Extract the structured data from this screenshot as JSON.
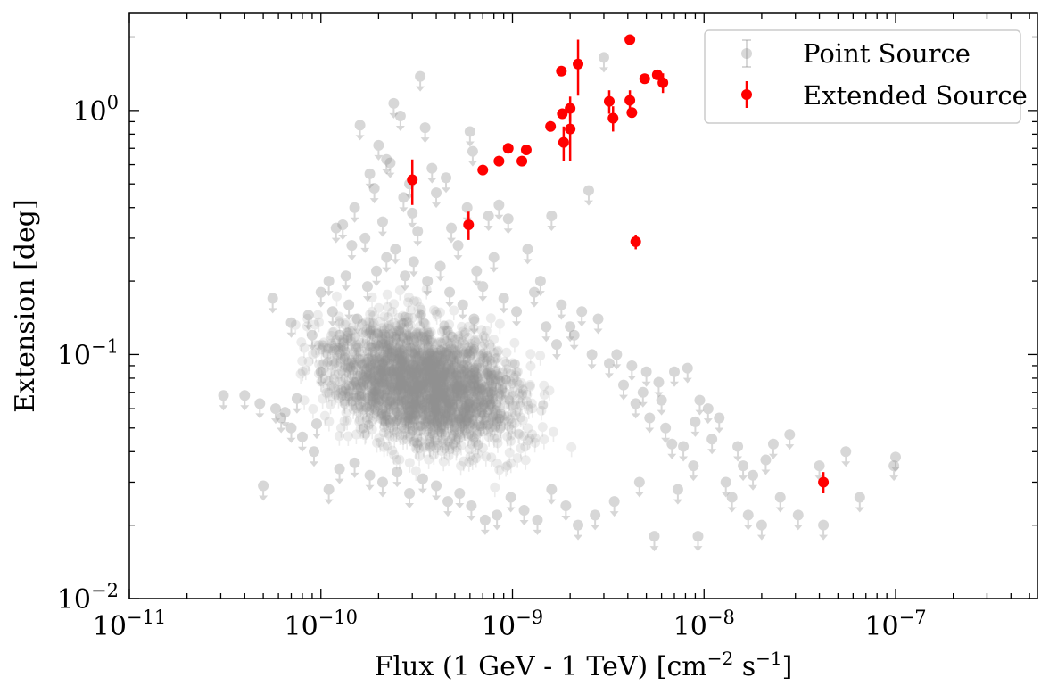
{
  "chart_data": {
    "type": "scatter",
    "xlabel": "Flux (1 GeV - 1 TeV) [cm",
    "xlabel_sup1": "−2",
    "xlabel_mid": " s",
    "xlabel_sup2": "−1",
    "xlabel_end": "]",
    "ylabel": "Extension [deg]",
    "x_scale": "log",
    "y_scale": "log",
    "xlim": [
      1e-11,
      5.5e-07
    ],
    "ylim": [
      0.01,
      2.5
    ],
    "x_ticks": [
      {
        "value": 1e-11,
        "base": "10",
        "exp": "−11"
      },
      {
        "value": 1e-10,
        "base": "10",
        "exp": "−10"
      },
      {
        "value": 1e-09,
        "base": "10",
        "exp": "−9"
      },
      {
        "value": 1e-08,
        "base": "10",
        "exp": "−8"
      },
      {
        "value": 1e-07,
        "base": "10",
        "exp": "−7"
      }
    ],
    "y_ticks": [
      {
        "value": 0.01,
        "base": "10",
        "exp": "−2"
      },
      {
        "value": 0.1,
        "base": "10",
        "exp": "−1"
      },
      {
        "value": 1,
        "base": "10",
        "exp": "0"
      }
    ],
    "legend": {
      "placement": "top-right",
      "entries": [
        "Point Source",
        "Extended Source"
      ]
    },
    "colors": {
      "point_source": "#909090",
      "extended_source": "#ff0000"
    },
    "series": [
      {
        "name": "Point Source",
        "kind": "upper-limit",
        "marker_color": "#909090",
        "opacity": 0.35,
        "points": [
          [
            3.1e-11,
            0.068
          ],
          [
            4e-11,
            0.068
          ],
          [
            4.8e-11,
            0.063
          ],
          [
            5e-11,
            0.029
          ],
          [
            5.6e-11,
            0.17
          ],
          [
            6.2e-11,
            0.055
          ],
          [
            7e-11,
            0.135
          ],
          [
            7.5e-11,
            0.066
          ],
          [
            8.6e-11,
            0.145
          ],
          [
            9e-11,
            0.12
          ],
          [
            9.5e-11,
            0.052
          ],
          [
            1e-10,
            0.085
          ],
          [
            1.1e-10,
            0.2
          ],
          [
            1.2e-10,
            0.33
          ],
          [
            1.35e-10,
            0.21
          ],
          [
            1.5e-10,
            0.4
          ],
          [
            1.6e-10,
            0.87
          ],
          [
            1.8e-10,
            0.55
          ],
          [
            2e-10,
            0.72
          ],
          [
            2.2e-10,
            0.63
          ],
          [
            2.4e-10,
            1.07
          ],
          [
            2.6e-10,
            0.95
          ],
          [
            2.9e-10,
            0.5
          ],
          [
            3.3e-10,
            1.38
          ],
          [
            3.5e-10,
            0.85
          ],
          [
            3.8e-10,
            0.58
          ],
          [
            4.5e-10,
            0.53
          ],
          [
            5.8e-10,
            0.4
          ],
          [
            6e-10,
            0.82
          ],
          [
            6.2e-10,
            0.68
          ],
          [
            7.5e-10,
            0.37
          ],
          [
            8.5e-10,
            0.41
          ],
          [
            9.5e-10,
            0.36
          ],
          [
            1.2e-09,
            0.27
          ],
          [
            1.4e-09,
            0.2
          ],
          [
            1.6e-09,
            0.37
          ],
          [
            2.5e-09,
            0.47
          ],
          [
            3e-09,
            1.65
          ],
          [
            1.8e-09,
            0.16
          ],
          [
            2e-09,
            0.13
          ],
          [
            2.3e-09,
            0.15
          ],
          [
            2.8e-09,
            0.14
          ],
          [
            3.5e-09,
            0.1
          ],
          [
            4.2e-09,
            0.09
          ],
          [
            5e-09,
            0.085
          ],
          [
            6e-09,
            0.065
          ],
          [
            7e-09,
            0.085
          ],
          [
            8.2e-09,
            0.088
          ],
          [
            9e-09,
            0.053
          ],
          [
            9.5e-09,
            0.065
          ],
          [
            1.1e-08,
            0.045
          ],
          [
            1.2e-08,
            0.055
          ],
          [
            1.3e-08,
            0.03
          ],
          [
            1.5e-08,
            0.042
          ],
          [
            1.6e-08,
            0.035
          ],
          [
            1.8e-08,
            0.032
          ],
          [
            2e-08,
            0.02
          ],
          [
            2.3e-08,
            0.043
          ],
          [
            2.5e-08,
            0.026
          ],
          [
            2.8e-08,
            0.047
          ],
          [
            3.1e-08,
            0.022
          ],
          [
            4e-08,
            0.035
          ],
          [
            4.2e-08,
            0.02
          ],
          [
            5.5e-08,
            0.04
          ],
          [
            6.5e-08,
            0.026
          ],
          [
            9.8e-08,
            0.035
          ],
          [
            1e-07,
            0.038
          ],
          [
            4.4e-09,
            0.063
          ],
          [
            5.5e-09,
            0.018
          ],
          [
            7.3e-09,
            0.028
          ],
          [
            1.05e-08,
            0.06
          ],
          [
            1.4e-08,
            0.026
          ],
          [
            1.7e-08,
            0.022
          ],
          [
            2.1e-08,
            0.037
          ],
          [
            9.3e-09,
            0.018
          ],
          [
            6.8e-09,
            0.043
          ],
          [
            5.8e-09,
            0.077
          ],
          [
            1.3e-10,
            0.34
          ],
          [
            1.45e-10,
            0.28
          ],
          [
            1.7e-10,
            0.3
          ],
          [
            1.9e-10,
            0.48
          ],
          [
            2.1e-10,
            0.35
          ],
          [
            2.3e-10,
            0.61
          ],
          [
            2.7e-10,
            0.44
          ],
          [
            3e-10,
            0.38
          ],
          [
            3.2e-10,
            0.32
          ],
          [
            4e-10,
            0.46
          ],
          [
            4.8e-10,
            0.33
          ],
          [
            5.2e-10,
            0.28
          ],
          [
            6.5e-10,
            0.22
          ],
          [
            7e-10,
            0.19
          ],
          [
            8e-10,
            0.25
          ],
          [
            9e-10,
            0.17
          ],
          [
            1.05e-09,
            0.15
          ],
          [
            1.3e-09,
            0.18
          ],
          [
            1.5e-09,
            0.13
          ],
          [
            1.7e-09,
            0.11
          ],
          [
            2.1e-09,
            0.12
          ],
          [
            2.6e-09,
            0.1
          ],
          [
            3.2e-09,
            0.092
          ],
          [
            3.8e-09,
            0.075
          ],
          [
            4.8e-09,
            0.07
          ],
          [
            5.2e-09,
            0.055
          ],
          [
            6.3e-09,
            0.05
          ],
          [
            7.8e-09,
            0.042
          ],
          [
            8.8e-09,
            0.035
          ],
          [
            4.6e-09,
            0.03
          ],
          [
            3.4e-09,
            0.025
          ],
          [
            2.7e-09,
            0.022
          ],
          [
            2.2e-09,
            0.02
          ],
          [
            1.9e-09,
            0.024
          ],
          [
            1.6e-09,
            0.028
          ],
          [
            1.35e-09,
            0.021
          ],
          [
            1.15e-09,
            0.023
          ],
          [
            9.8e-10,
            0.026
          ],
          [
            8.3e-10,
            0.022
          ],
          [
            7.2e-10,
            0.021
          ],
          [
            6.1e-10,
            0.024
          ],
          [
            5.3e-10,
            0.027
          ],
          [
            4.6e-10,
            0.025
          ],
          [
            4e-10,
            0.029
          ],
          [
            3.4e-10,
            0.031
          ],
          [
            2.9e-10,
            0.027
          ],
          [
            2.5e-10,
            0.033
          ],
          [
            2.1e-10,
            0.03
          ],
          [
            1.8e-10,
            0.032
          ],
          [
            1.5e-10,
            0.036
          ],
          [
            1.25e-10,
            0.034
          ],
          [
            1.1e-10,
            0.028
          ],
          [
            9.2e-11,
            0.04
          ],
          [
            8e-11,
            0.046
          ],
          [
            7e-11,
            0.05
          ],
          [
            6.5e-11,
            0.058
          ],
          [
            5.8e-11,
            0.06
          ],
          [
            1e-10,
            0.18
          ],
          [
            1.15e-10,
            0.15
          ],
          [
            1.25e-10,
            0.12
          ],
          [
            1.4e-10,
            0.16
          ],
          [
            1.55e-10,
            0.14
          ],
          [
            1.75e-10,
            0.19
          ],
          [
            1.95e-10,
            0.22
          ],
          [
            2.2e-10,
            0.25
          ],
          [
            2.45e-10,
            0.27
          ],
          [
            2.75e-10,
            0.21
          ],
          [
            3.05e-10,
            0.24
          ],
          [
            3.6e-10,
            0.2
          ],
          [
            4.2e-10,
            0.23
          ],
          [
            4.7e-10,
            0.18
          ],
          [
            5.5e-10,
            0.16
          ],
          [
            6.3e-10,
            0.14
          ]
        ]
      },
      {
        "name": "Extended Source",
        "kind": "measurement",
        "marker_color": "#ff0000",
        "points": [
          {
            "x": 3e-10,
            "y": 0.52,
            "ylo": 0.41,
            "yhi": 0.63
          },
          {
            "x": 5.9e-10,
            "y": 0.34,
            "ylo": 0.295,
            "yhi": 0.385
          },
          {
            "x": 7e-10,
            "y": 0.57
          },
          {
            "x": 8.5e-10,
            "y": 0.62
          },
          {
            "x": 9.5e-10,
            "y": 0.7
          },
          {
            "x": 1.12e-09,
            "y": 0.62
          },
          {
            "x": 1.18e-09,
            "y": 0.69
          },
          {
            "x": 1.58e-09,
            "y": 0.86
          },
          {
            "x": 1.8e-09,
            "y": 1.45
          },
          {
            "x": 1.82e-09,
            "y": 0.97
          },
          {
            "x": 1.85e-09,
            "y": 0.74,
            "ylo": 0.62,
            "yhi": 0.86
          },
          {
            "x": 2e-09,
            "y": 1.02,
            "ylo": 0.9,
            "yhi": 1.14
          },
          {
            "x": 2e-09,
            "y": 0.84,
            "ylo": 0.62,
            "yhi": 1.06
          },
          {
            "x": 2.2e-09,
            "y": 1.55,
            "ylo": 1.15,
            "yhi": 1.95
          },
          {
            "x": 3.2e-09,
            "y": 1.09,
            "ylo": 0.97,
            "yhi": 1.21
          },
          {
            "x": 3.35e-09,
            "y": 0.93,
            "ylo": 0.82,
            "yhi": 1.04
          },
          {
            "x": 4.1e-09,
            "y": 1.95
          },
          {
            "x": 4.1e-09,
            "y": 1.1,
            "ylo": 0.99,
            "yhi": 1.21
          },
          {
            "x": 4.2e-09,
            "y": 0.98
          },
          {
            "x": 4.4e-09,
            "y": 0.29,
            "ylo": 0.27,
            "yhi": 0.31
          },
          {
            "x": 4.9e-09,
            "y": 1.35
          },
          {
            "x": 5.7e-09,
            "y": 1.4
          },
          {
            "x": 6.1e-09,
            "y": 1.3,
            "ylo": 1.18,
            "yhi": 1.42
          },
          {
            "x": 4.2e-08,
            "y": 0.03,
            "ylo": 0.027,
            "yhi": 0.033
          }
        ]
      }
    ]
  }
}
